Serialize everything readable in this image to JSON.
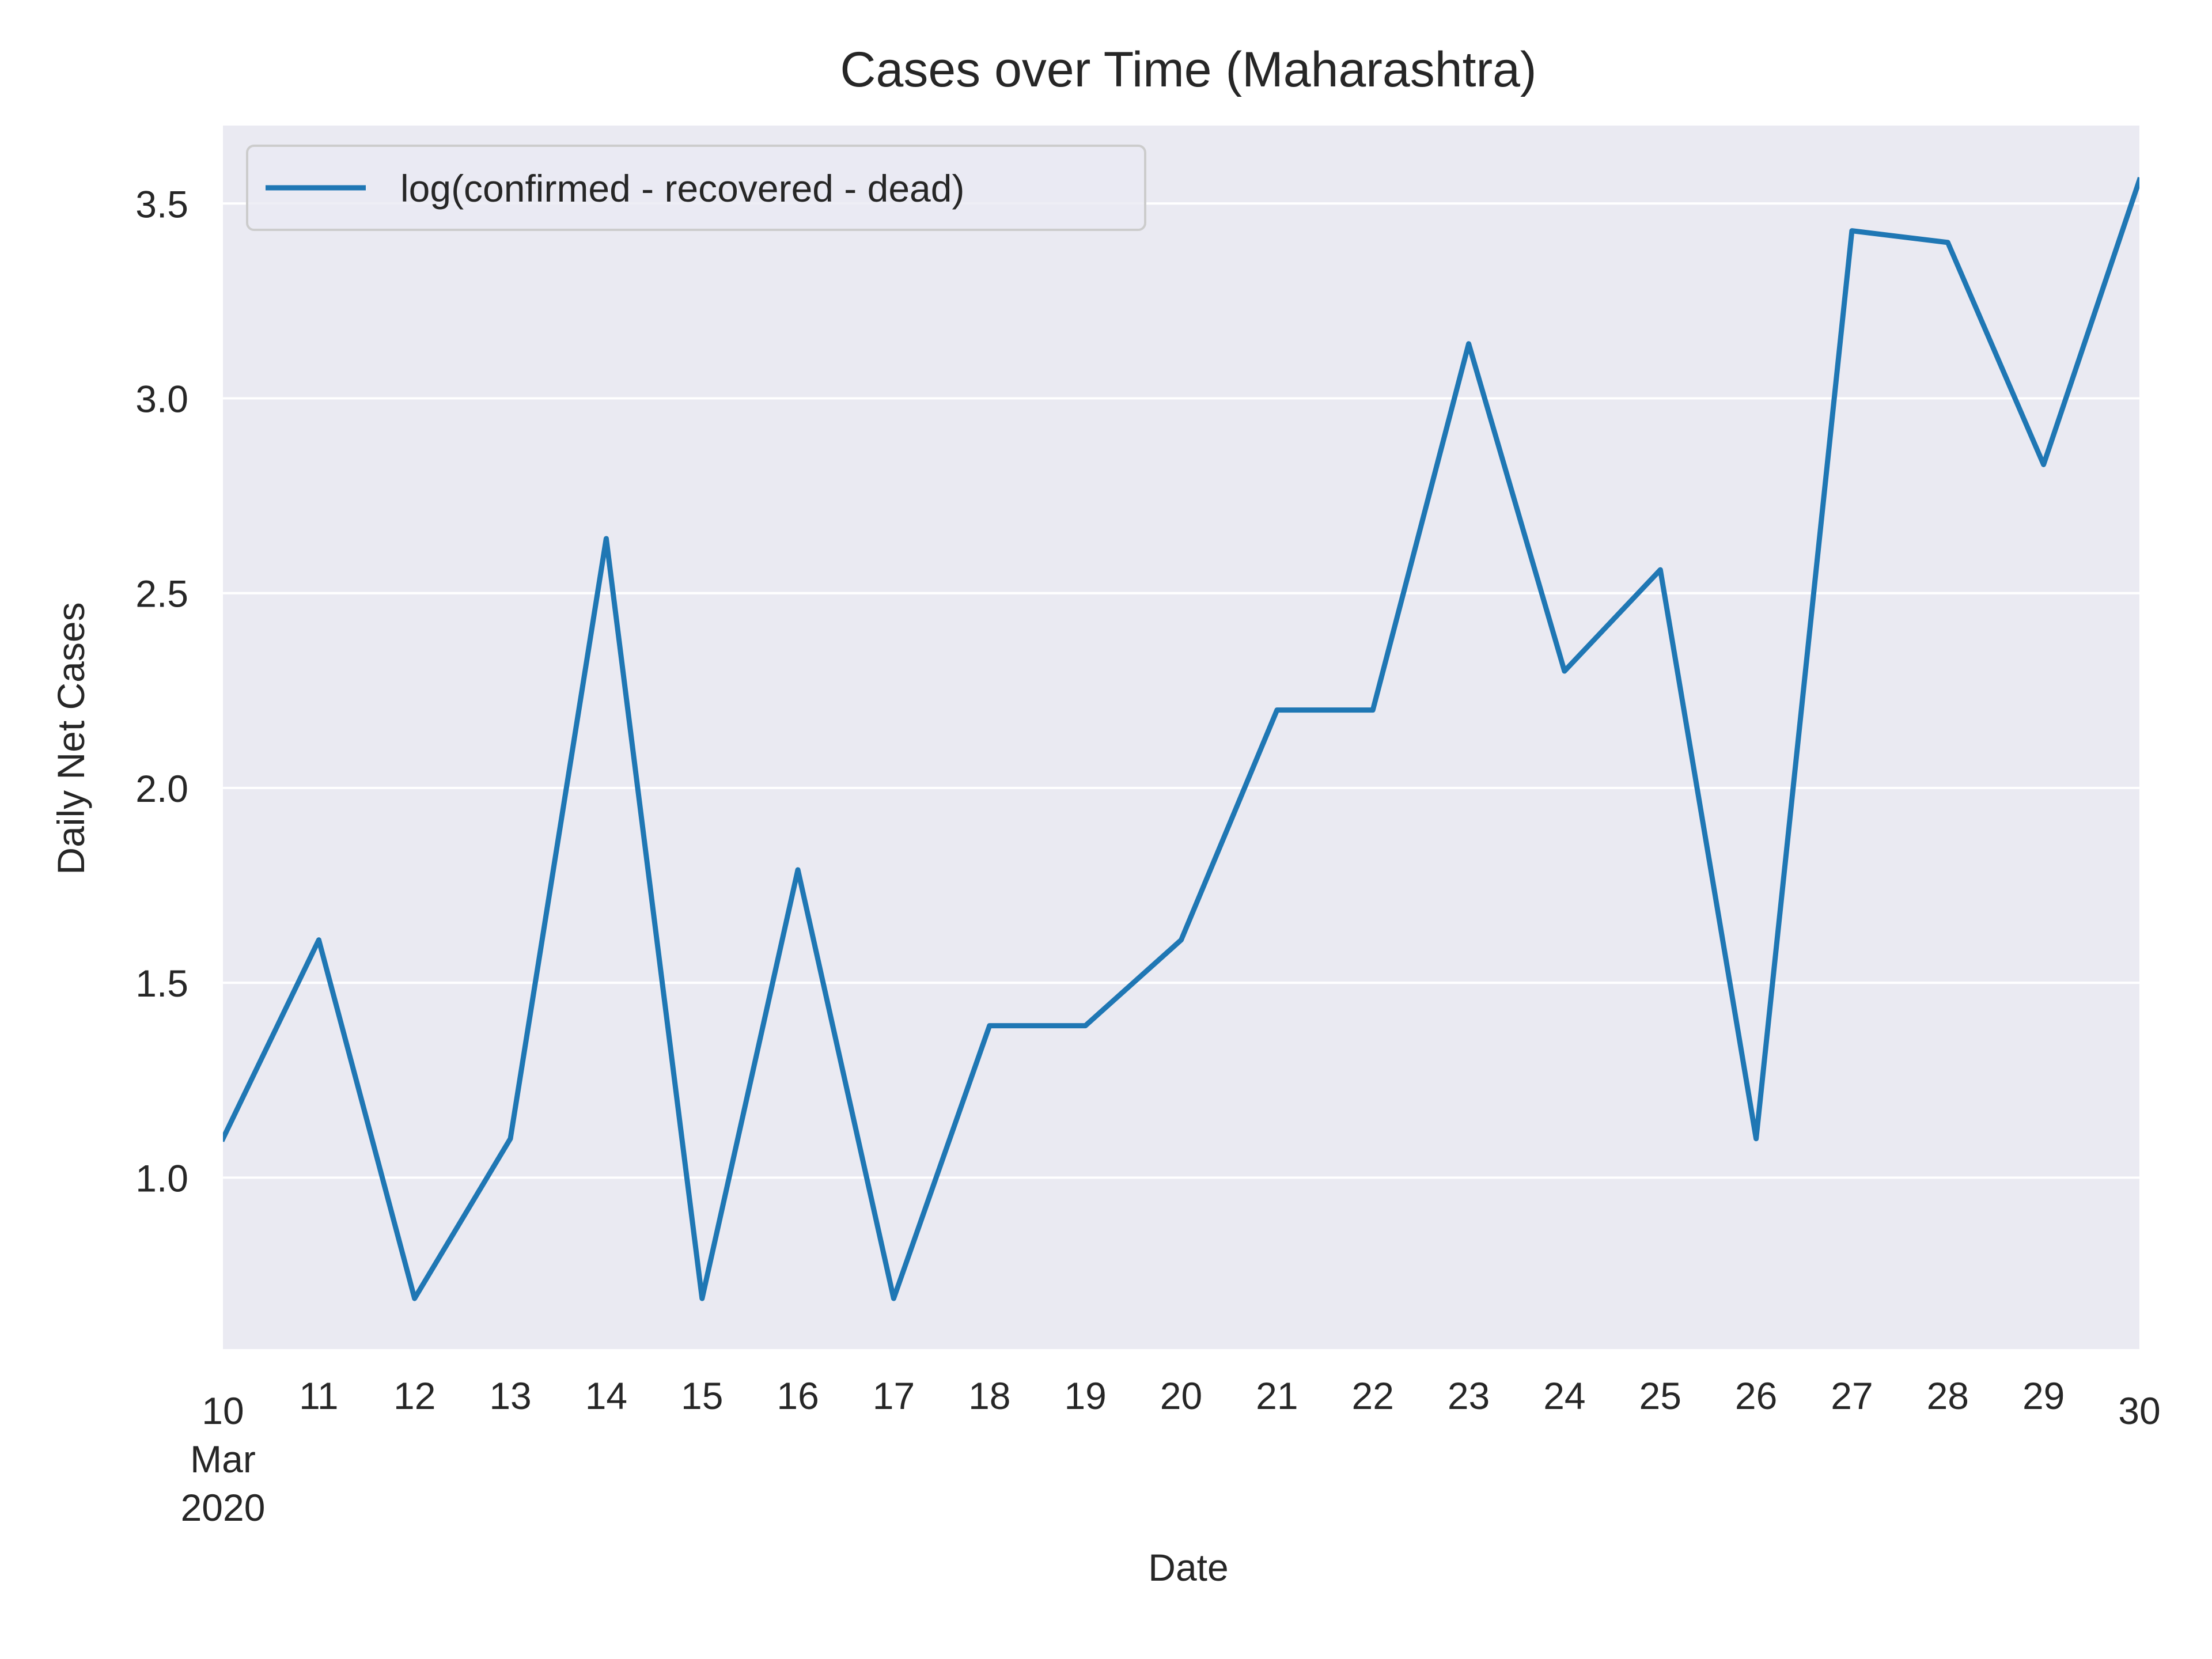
{
  "chart_data": {
    "type": "line",
    "title": "Cases over Time (Maharashtra)",
    "xlabel": "Date",
    "ylabel": "Daily Net Cases",
    "x": [
      "2020-03-10",
      "2020-03-11",
      "2020-03-12",
      "2020-03-13",
      "2020-03-14",
      "2020-03-15",
      "2020-03-16",
      "2020-03-17",
      "2020-03-18",
      "2020-03-19",
      "2020-03-20",
      "2020-03-21",
      "2020-03-22",
      "2020-03-23",
      "2020-03-24",
      "2020-03-25",
      "2020-03-26",
      "2020-03-27",
      "2020-03-28",
      "2020-03-29",
      "2020-03-30"
    ],
    "x_tick_labels": [
      [
        "10",
        "Mar",
        "2020"
      ],
      [
        "11"
      ],
      [
        "12"
      ],
      [
        "13"
      ],
      [
        "14"
      ],
      [
        "15"
      ],
      [
        "16"
      ],
      [
        "17"
      ],
      [
        "18"
      ],
      [
        "19"
      ],
      [
        "20"
      ],
      [
        "21"
      ],
      [
        "22"
      ],
      [
        "23"
      ],
      [
        "24"
      ],
      [
        "25"
      ],
      [
        "26"
      ],
      [
        "27"
      ],
      [
        "28"
      ],
      [
        "29"
      ],
      [
        "30"
      ]
    ],
    "series": [
      {
        "name": "log(confirmed - recovered - dead)",
        "color": "#1f77b4",
        "values": [
          1.1,
          1.61,
          0.69,
          1.1,
          2.64,
          0.69,
          1.79,
          0.69,
          1.39,
          1.39,
          1.61,
          2.2,
          2.2,
          3.14,
          2.3,
          2.56,
          1.1,
          3.43,
          3.4,
          2.83,
          3.56
        ]
      }
    ],
    "yticks": [
      "1.0",
      "1.5",
      "2.0",
      "2.5",
      "3.0",
      "3.5"
    ],
    "ylim": [
      0.56,
      3.7
    ],
    "grid": true,
    "legend_position": "top-left",
    "background": "#eaeaf2",
    "grid_color": "#ffffff"
  }
}
